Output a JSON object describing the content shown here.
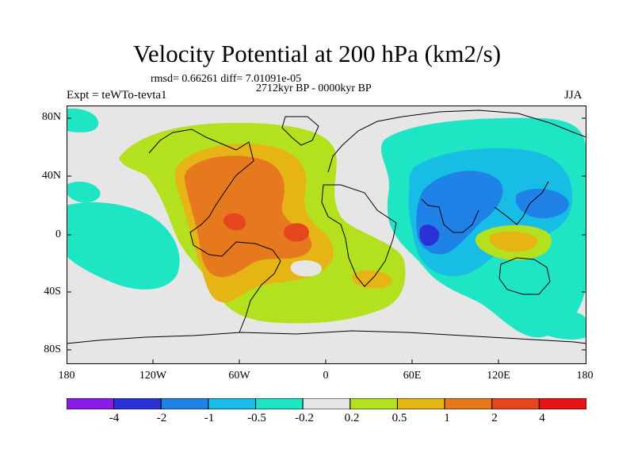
{
  "title": "Velocity Potential at 200 hPa (km2/s)",
  "stats": "rmsd= 0.66261 diff= 7.01091e-05",
  "period": "2712kyr BP - 0000kyr BP",
  "experiment": "Expt = teWTo-tevta1",
  "season": "JJA",
  "lat_labels": [
    "80N",
    "40N",
    "0",
    "40S",
    "80S"
  ],
  "lon_labels": [
    "180",
    "120W",
    "60W",
    "0",
    "60E",
    "120E",
    "180"
  ],
  "colorbar": {
    "labels": [
      "-4",
      "-2",
      "-1",
      "-0.5",
      "-0.2",
      "0.2",
      "0.5",
      "1",
      "2",
      "4"
    ],
    "colors": [
      "#8c1ae6",
      "#2a32d6",
      "#1e82e6",
      "#18bde6",
      "#1ee6c4",
      "#e6e6e6",
      "#b4e11e",
      "#e6b414",
      "#e6781e",
      "#e6461e",
      "#e61414"
    ]
  }
}
